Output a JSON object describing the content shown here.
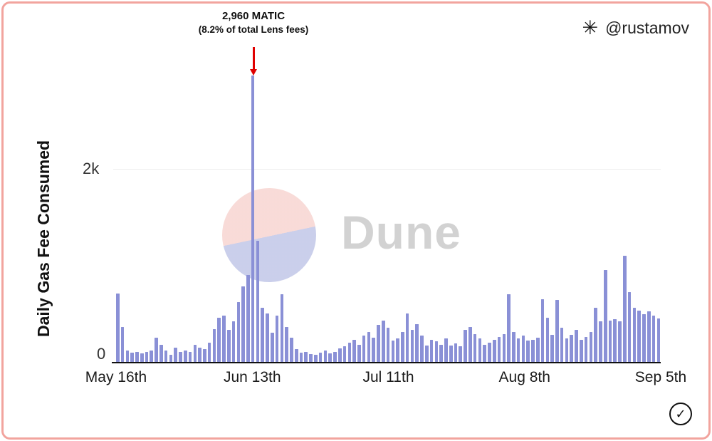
{
  "colors": {
    "bar": "#8a90d6",
    "frame_border": "#f2a49e",
    "arrow": "#e00000",
    "watermark_text": "#d2d2d2",
    "watermark_pink": "#f8d8d4",
    "watermark_lavender": "#c6cbe9"
  },
  "attribution": {
    "icon": "asterisk-icon",
    "icon_glyph": "✳",
    "handle": "@rustamov"
  },
  "annotation": {
    "line1": "2,960 MATIC",
    "line2": "(8.2% of total Lens fees)"
  },
  "watermark": {
    "text": "Dune"
  },
  "badge": {
    "icon": "check-icon",
    "glyph": "✓"
  },
  "chart_data": {
    "type": "bar",
    "title": "",
    "ylabel": "Daily Gas Fee Consumed",
    "xlabel": "",
    "ylim": [
      0,
      2960
    ],
    "yticks": [
      "2k",
      "0"
    ],
    "ytick_values": [
      2000,
      0
    ],
    "grid": "horizontal line at 2k only",
    "legend": "none",
    "x_tick_labels": [
      "May 16th",
      "Jun 13th",
      "Jul 11th",
      "Aug 8th",
      "Sep 5th"
    ],
    "x_tick_indices": [
      0,
      28,
      56,
      84,
      112
    ],
    "peak_annotation": {
      "index": 28,
      "value": 2960,
      "label": "2,960 MATIC (8.2% of total Lens fees)"
    },
    "values": [
      710,
      360,
      115,
      95,
      105,
      85,
      100,
      115,
      250,
      180,
      120,
      75,
      145,
      105,
      115,
      105,
      180,
      150,
      130,
      200,
      340,
      460,
      480,
      330,
      420,
      620,
      780,
      900,
      2960,
      1250,
      560,
      500,
      300,
      480,
      700,
      360,
      250,
      130,
      95,
      105,
      80,
      75,
      95,
      115,
      90,
      100,
      140,
      160,
      200,
      230,
      180,
      270,
      310,
      250,
      380,
      430,
      350,
      220,
      240,
      310,
      500,
      330,
      390,
      270,
      170,
      230,
      210,
      180,
      240,
      170,
      190,
      160,
      330,
      360,
      290,
      240,
      180,
      200,
      230,
      260,
      290,
      700,
      310,
      240,
      270,
      220,
      230,
      250,
      650,
      460,
      280,
      640,
      350,
      240,
      280,
      330,
      230,
      260,
      310,
      560,
      420,
      950,
      430,
      440,
      420,
      1100,
      720,
      560,
      530,
      490,
      520,
      480,
      450
    ]
  }
}
